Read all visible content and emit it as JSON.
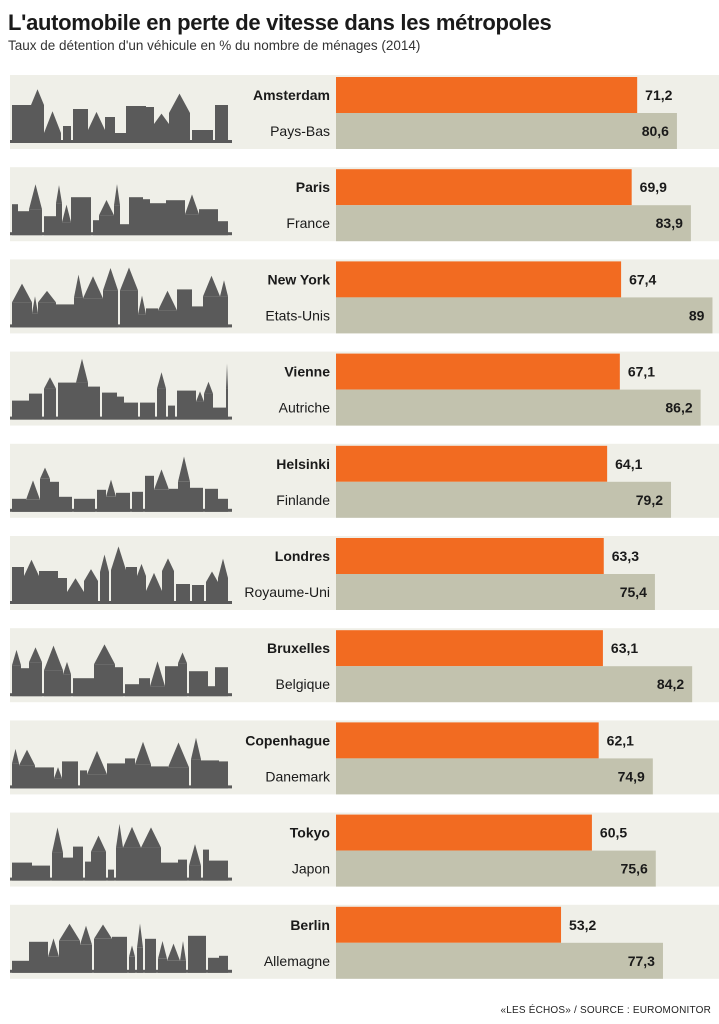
{
  "title": "L'automobile en perte de vitesse dans les métropoles",
  "subtitle": "Taux de détention d'un véhicule en % du nombre de ménages (2014)",
  "source": "«LES ÉCHOS» / SOURCE : EUROMONITOR",
  "colors": {
    "city": "#f26b21",
    "country": "#c2c2ae",
    "panel": "#efefe8",
    "skyline": "#5a5a5a"
  },
  "chart_data": {
    "type": "bar",
    "orientation": "horizontal",
    "xlim": [
      0,
      100
    ],
    "series": [
      {
        "name": "city",
        "color": "#f26b21"
      },
      {
        "name": "country",
        "color": "#c2c2ae"
      }
    ],
    "groups": [
      {
        "city": "Amsterdam",
        "city_value": 71.2,
        "city_label": "71,2",
        "country": "Pays-Bas",
        "country_value": 80.6,
        "country_label": "80,6",
        "skyline_icon": "amsterdam-skyline-icon"
      },
      {
        "city": "Paris",
        "city_value": 69.9,
        "city_label": "69,9",
        "country": "France",
        "country_value": 83.9,
        "country_label": "83,9",
        "skyline_icon": "paris-skyline-icon"
      },
      {
        "city": "New York",
        "city_value": 67.4,
        "city_label": "67,4",
        "country": "Etats-Unis",
        "country_value": 89,
        "country_label": "89",
        "skyline_icon": "new-york-skyline-icon"
      },
      {
        "city": "Vienne",
        "city_value": 67.1,
        "city_label": "67,1",
        "country": "Autriche",
        "country_value": 86.2,
        "country_label": "86,2",
        "skyline_icon": "vienne-skyline-icon"
      },
      {
        "city": "Helsinki",
        "city_value": 64.1,
        "city_label": "64,1",
        "country": "Finlande",
        "country_value": 79.2,
        "country_label": "79,2",
        "skyline_icon": "helsinki-skyline-icon"
      },
      {
        "city": "Londres",
        "city_value": 63.3,
        "city_label": "63,3",
        "country": "Royaume-Uni",
        "country_value": 75.4,
        "country_label": "75,4",
        "skyline_icon": "londres-skyline-icon"
      },
      {
        "city": "Bruxelles",
        "city_value": 63.1,
        "city_label": "63,1",
        "country": "Belgique",
        "country_value": 84.2,
        "country_label": "84,2",
        "skyline_icon": "bruxelles-skyline-icon"
      },
      {
        "city": "Copenhague",
        "city_value": 62.1,
        "city_label": "62,1",
        "country": "Danemark",
        "country_value": 74.9,
        "country_label": "74,9",
        "skyline_icon": "copenhague-skyline-icon"
      },
      {
        "city": "Tokyo",
        "city_value": 60.5,
        "city_label": "60,5",
        "country": "Japon",
        "country_value": 75.6,
        "country_label": "75,6",
        "skyline_icon": "tokyo-skyline-icon"
      },
      {
        "city": "Berlin",
        "city_value": 53.2,
        "city_label": "53,2",
        "country": "Allemagne",
        "country_value": 77.3,
        "country_label": "77,3",
        "skyline_icon": "berlin-skyline-icon"
      }
    ]
  }
}
